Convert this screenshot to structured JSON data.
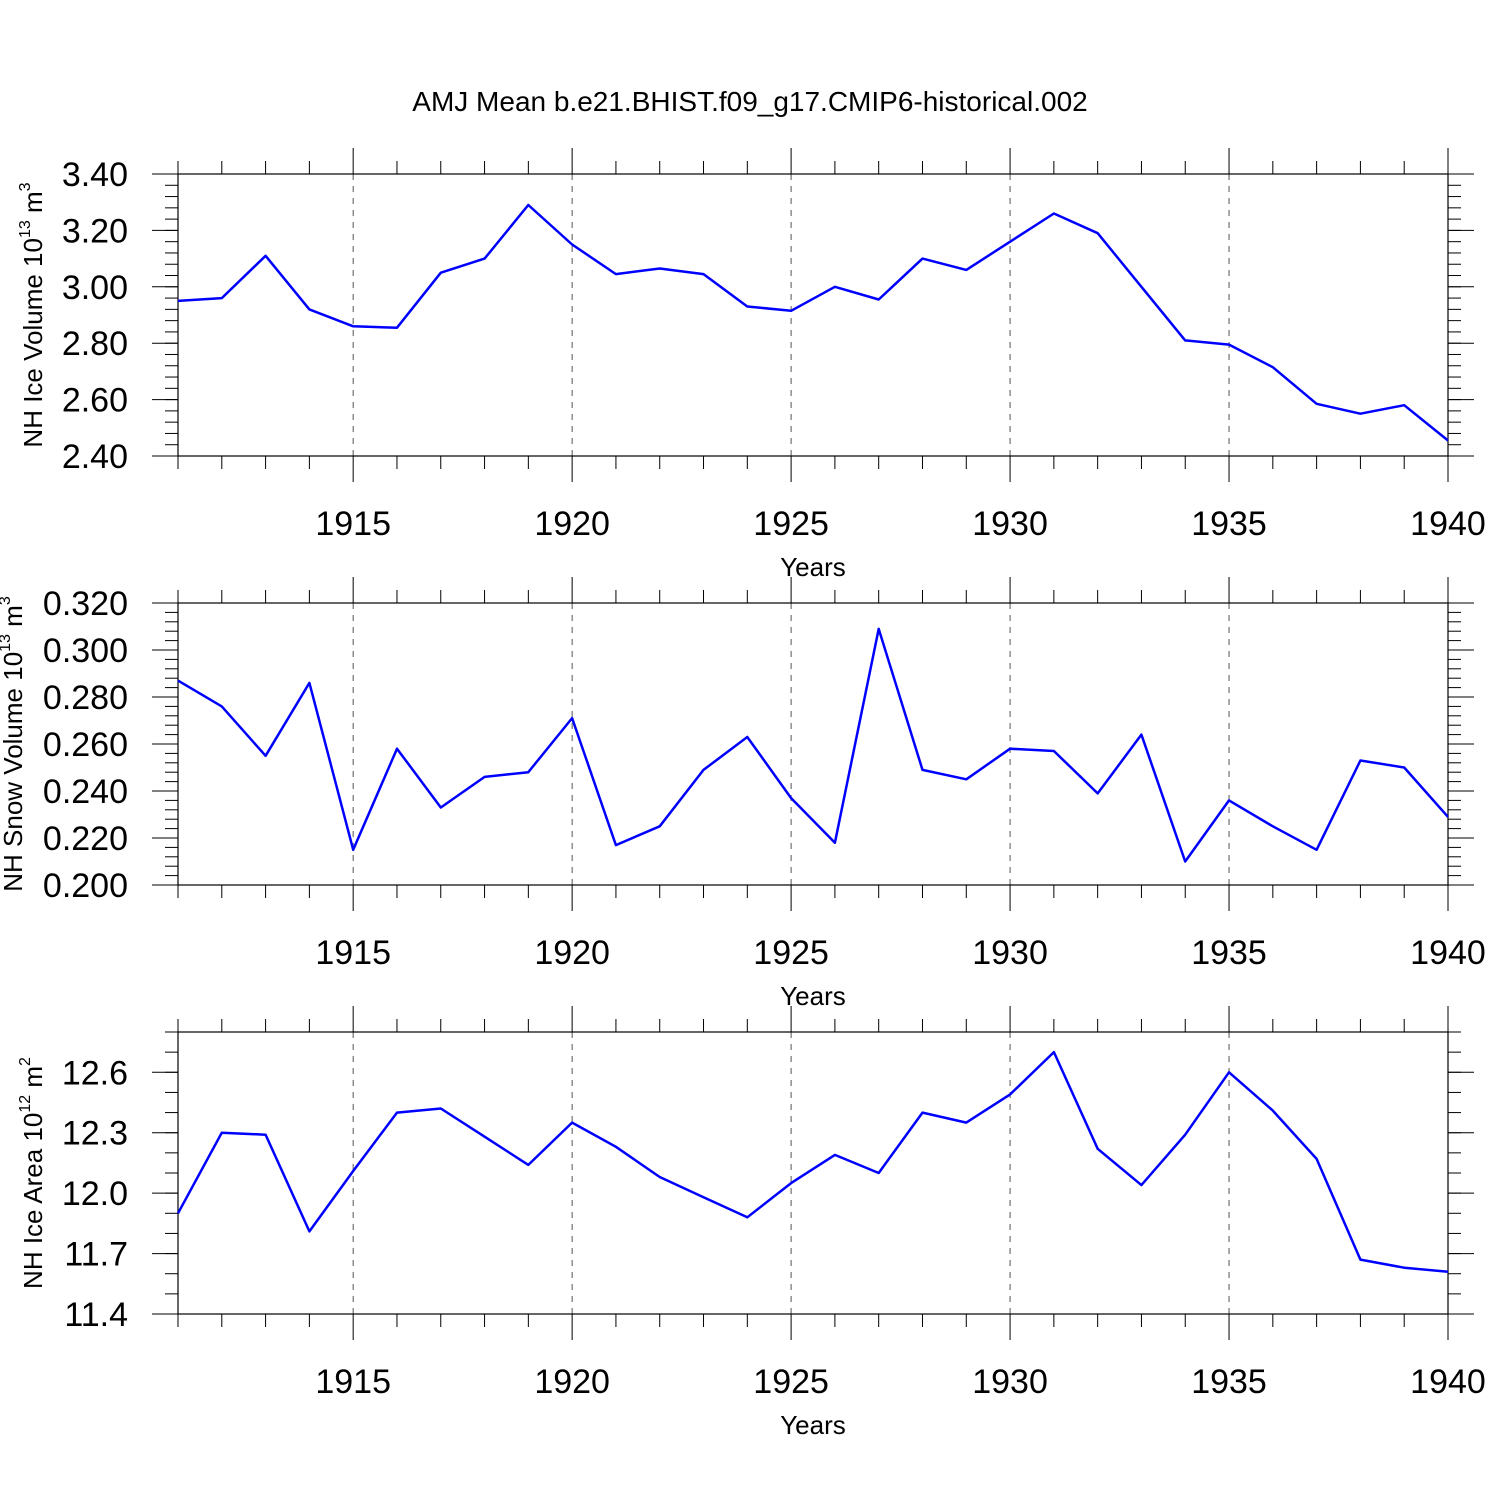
{
  "figure": {
    "title": "AMJ Mean b.e21.BHIST.f09_g17.CMIP6-historical.002",
    "line_color": "#0000ff"
  },
  "chart_data": [
    {
      "type": "line",
      "title": "",
      "xlabel": "Years",
      "ylabel": {
        "text": "NH Ice Volume 10",
        "sup": "13",
        "unit": " m",
        "unit_sup": "3"
      },
      "xlim": [
        1911,
        1940
      ],
      "ylim": [
        2.4,
        3.4
      ],
      "x_major_ticks": [
        1915,
        1920,
        1925,
        1930,
        1935,
        1940
      ],
      "y_ticks": [
        "2.40",
        "2.60",
        "2.80",
        "3.00",
        "3.20",
        "3.40"
      ],
      "y_minor_step": 0.04,
      "grid": "vertical dashed at major x ticks",
      "series": [
        {
          "name": "NH Ice Volume",
          "x": [
            1911,
            1912,
            1913,
            1914,
            1915,
            1916,
            1917,
            1918,
            1919,
            1920,
            1921,
            1922,
            1923,
            1924,
            1925,
            1926,
            1927,
            1928,
            1929,
            1930,
            1931,
            1932,
            1933,
            1934,
            1935,
            1936,
            1937,
            1938,
            1939,
            1940
          ],
          "values": [
            2.95,
            2.96,
            3.11,
            2.92,
            2.86,
            2.855,
            3.05,
            3.1,
            3.29,
            3.15,
            3.045,
            3.065,
            3.045,
            2.93,
            2.915,
            3.0,
            2.955,
            3.1,
            3.06,
            3.16,
            3.26,
            3.19,
            3.0,
            2.81,
            2.795,
            2.715,
            2.585,
            2.55,
            2.58,
            2.455
          ]
        }
      ]
    },
    {
      "type": "line",
      "title": "",
      "xlabel": "Years",
      "ylabel": {
        "text": "NH Snow Volume 10",
        "sup": "13",
        "unit": " m",
        "unit_sup": "3"
      },
      "xlim": [
        1911,
        1940
      ],
      "ylim": [
        0.2,
        0.32
      ],
      "x_major_ticks": [
        1915,
        1920,
        1925,
        1930,
        1935,
        1940
      ],
      "y_ticks": [
        "0.200",
        "0.220",
        "0.240",
        "0.260",
        "0.280",
        "0.300",
        "0.320"
      ],
      "y_minor_step": 0.004,
      "grid": "vertical dashed at major x ticks",
      "series": [
        {
          "name": "NH Snow Volume",
          "x": [
            1911,
            1912,
            1913,
            1914,
            1915,
            1916,
            1917,
            1918,
            1919,
            1920,
            1921,
            1922,
            1923,
            1924,
            1925,
            1926,
            1927,
            1928,
            1929,
            1930,
            1931,
            1932,
            1933,
            1934,
            1935,
            1936,
            1937,
            1938,
            1939,
            1940
          ],
          "values": [
            0.287,
            0.276,
            0.255,
            0.286,
            0.215,
            0.258,
            0.233,
            0.246,
            0.248,
            0.271,
            0.217,
            0.225,
            0.249,
            0.263,
            0.237,
            0.218,
            0.309,
            0.249,
            0.245,
            0.258,
            0.257,
            0.239,
            0.264,
            0.21,
            0.236,
            0.225,
            0.215,
            0.253,
            0.25,
            0.229
          ]
        }
      ]
    },
    {
      "type": "line",
      "title": "",
      "xlabel": "Years",
      "ylabel": {
        "text": "NH Ice Area 10",
        "sup": "12",
        "unit": " m",
        "unit_sup": "2"
      },
      "xlim": [
        1911,
        1940
      ],
      "ylim": [
        11.4,
        12.8
      ],
      "x_major_ticks": [
        1915,
        1920,
        1925,
        1930,
        1935,
        1940
      ],
      "y_ticks": [
        "11.4",
        "11.7",
        "12.0",
        "12.3",
        "12.6"
      ],
      "y_minor_step": 0.1,
      "grid": "vertical dashed at major x ticks",
      "series": [
        {
          "name": "NH Ice Area",
          "x": [
            1911,
            1912,
            1913,
            1914,
            1915,
            1916,
            1917,
            1918,
            1919,
            1920,
            1921,
            1922,
            1923,
            1924,
            1925,
            1926,
            1927,
            1928,
            1929,
            1930,
            1931,
            1932,
            1933,
            1934,
            1935,
            1936,
            1937,
            1938,
            1939,
            1940
          ],
          "values": [
            11.9,
            12.3,
            12.29,
            11.81,
            12.11,
            12.4,
            12.42,
            12.28,
            12.14,
            12.35,
            12.23,
            12.08,
            11.98,
            11.88,
            12.05,
            12.19,
            12.1,
            12.4,
            12.35,
            12.49,
            12.7,
            12.22,
            12.04,
            12.29,
            12.6,
            12.41,
            12.17,
            11.67,
            11.63,
            11.61
          ]
        }
      ]
    }
  ]
}
